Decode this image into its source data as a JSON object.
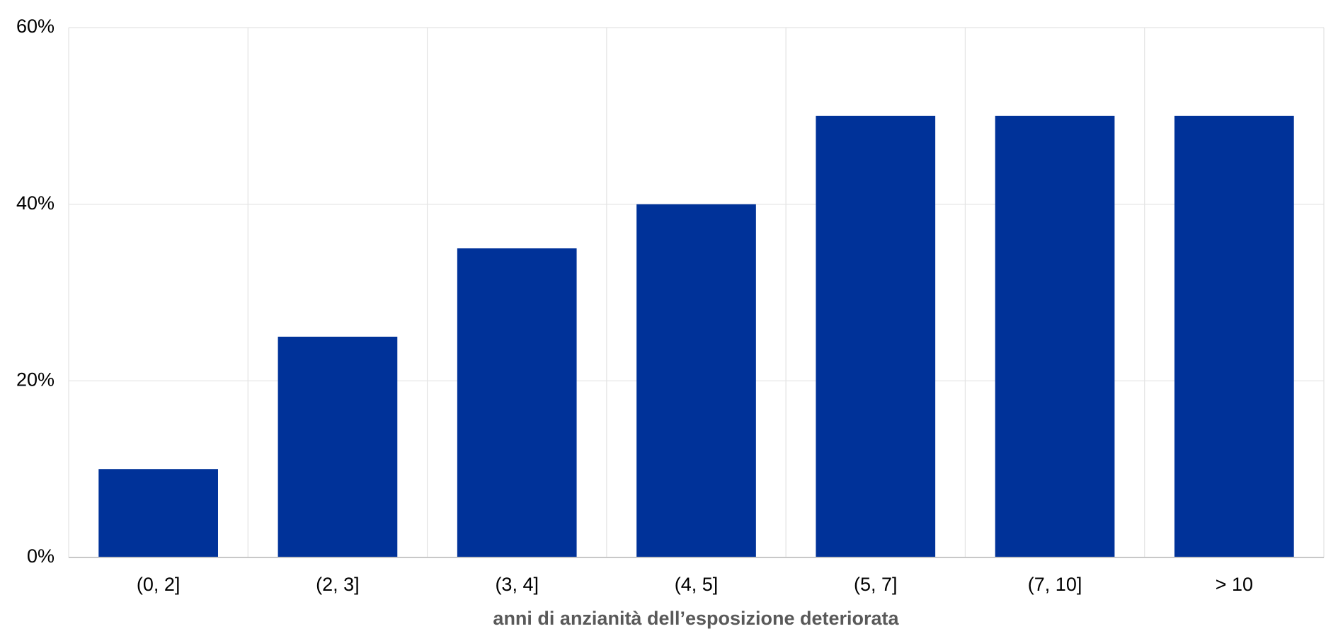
{
  "chart_data": {
    "type": "bar",
    "x_label": "anni di anzianità dell’esposizione deteriorata",
    "categories": [
      "(0, 2]",
      "(2, 3]",
      "(3, 4]",
      "(4, 5]",
      "(5, 7]",
      "(7, 10]",
      "> 10"
    ],
    "values": [
      10,
      25,
      35,
      40,
      50,
      50,
      50
    ],
    "color": "#003299",
    "ylim": [
      0,
      60
    ],
    "yticks": [
      {
        "value": 0,
        "label": "0%"
      },
      {
        "value": 20,
        "label": "20%"
      },
      {
        "value": 40,
        "label": "40%"
      },
      {
        "value": 60,
        "label": "60%"
      }
    ],
    "grid": true
  }
}
